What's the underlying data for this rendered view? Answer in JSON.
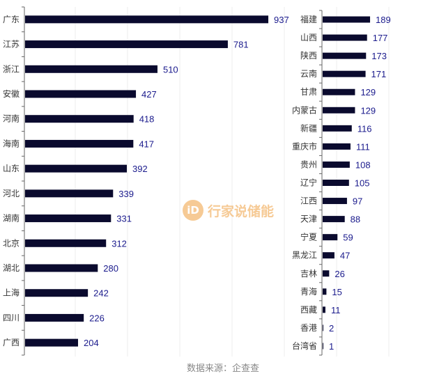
{
  "chart_data": [
    {
      "type": "bar",
      "orientation": "horizontal",
      "categories": [
        "广东",
        "江苏",
        "浙江",
        "安徽",
        "河南",
        "海南",
        "山东",
        "河北",
        "湖南",
        "北京",
        "湖北",
        "上海",
        "四川",
        "广西"
      ],
      "values": [
        937,
        781,
        510,
        427,
        418,
        417,
        392,
        339,
        331,
        312,
        280,
        242,
        226,
        204
      ],
      "xlim": [
        0,
        1600
      ],
      "grid": true,
      "bar_color": "#0a0a2e",
      "label_color": "#1a1a8c"
    },
    {
      "type": "bar",
      "orientation": "horizontal",
      "categories": [
        "福建",
        "山西",
        "陕西",
        "云南",
        "甘肃",
        "内蒙古",
        "新疆",
        "重庆市",
        "贵州",
        "辽宁",
        "江西",
        "天津",
        "宁夏",
        "黑龙江",
        "吉林",
        "青海",
        "西藏",
        "香港",
        "台湾省"
      ],
      "values": [
        189,
        177,
        173,
        171,
        129,
        129,
        116,
        111,
        108,
        105,
        97,
        88,
        59,
        47,
        26,
        15,
        11,
        2,
        1
      ],
      "grid": true,
      "bar_color": "#0a0a2e",
      "label_color": "#1a1a8c"
    }
  ],
  "source": "数据来源：企查查",
  "watermark": {
    "logo": "iD",
    "text": "行家说储能"
  }
}
